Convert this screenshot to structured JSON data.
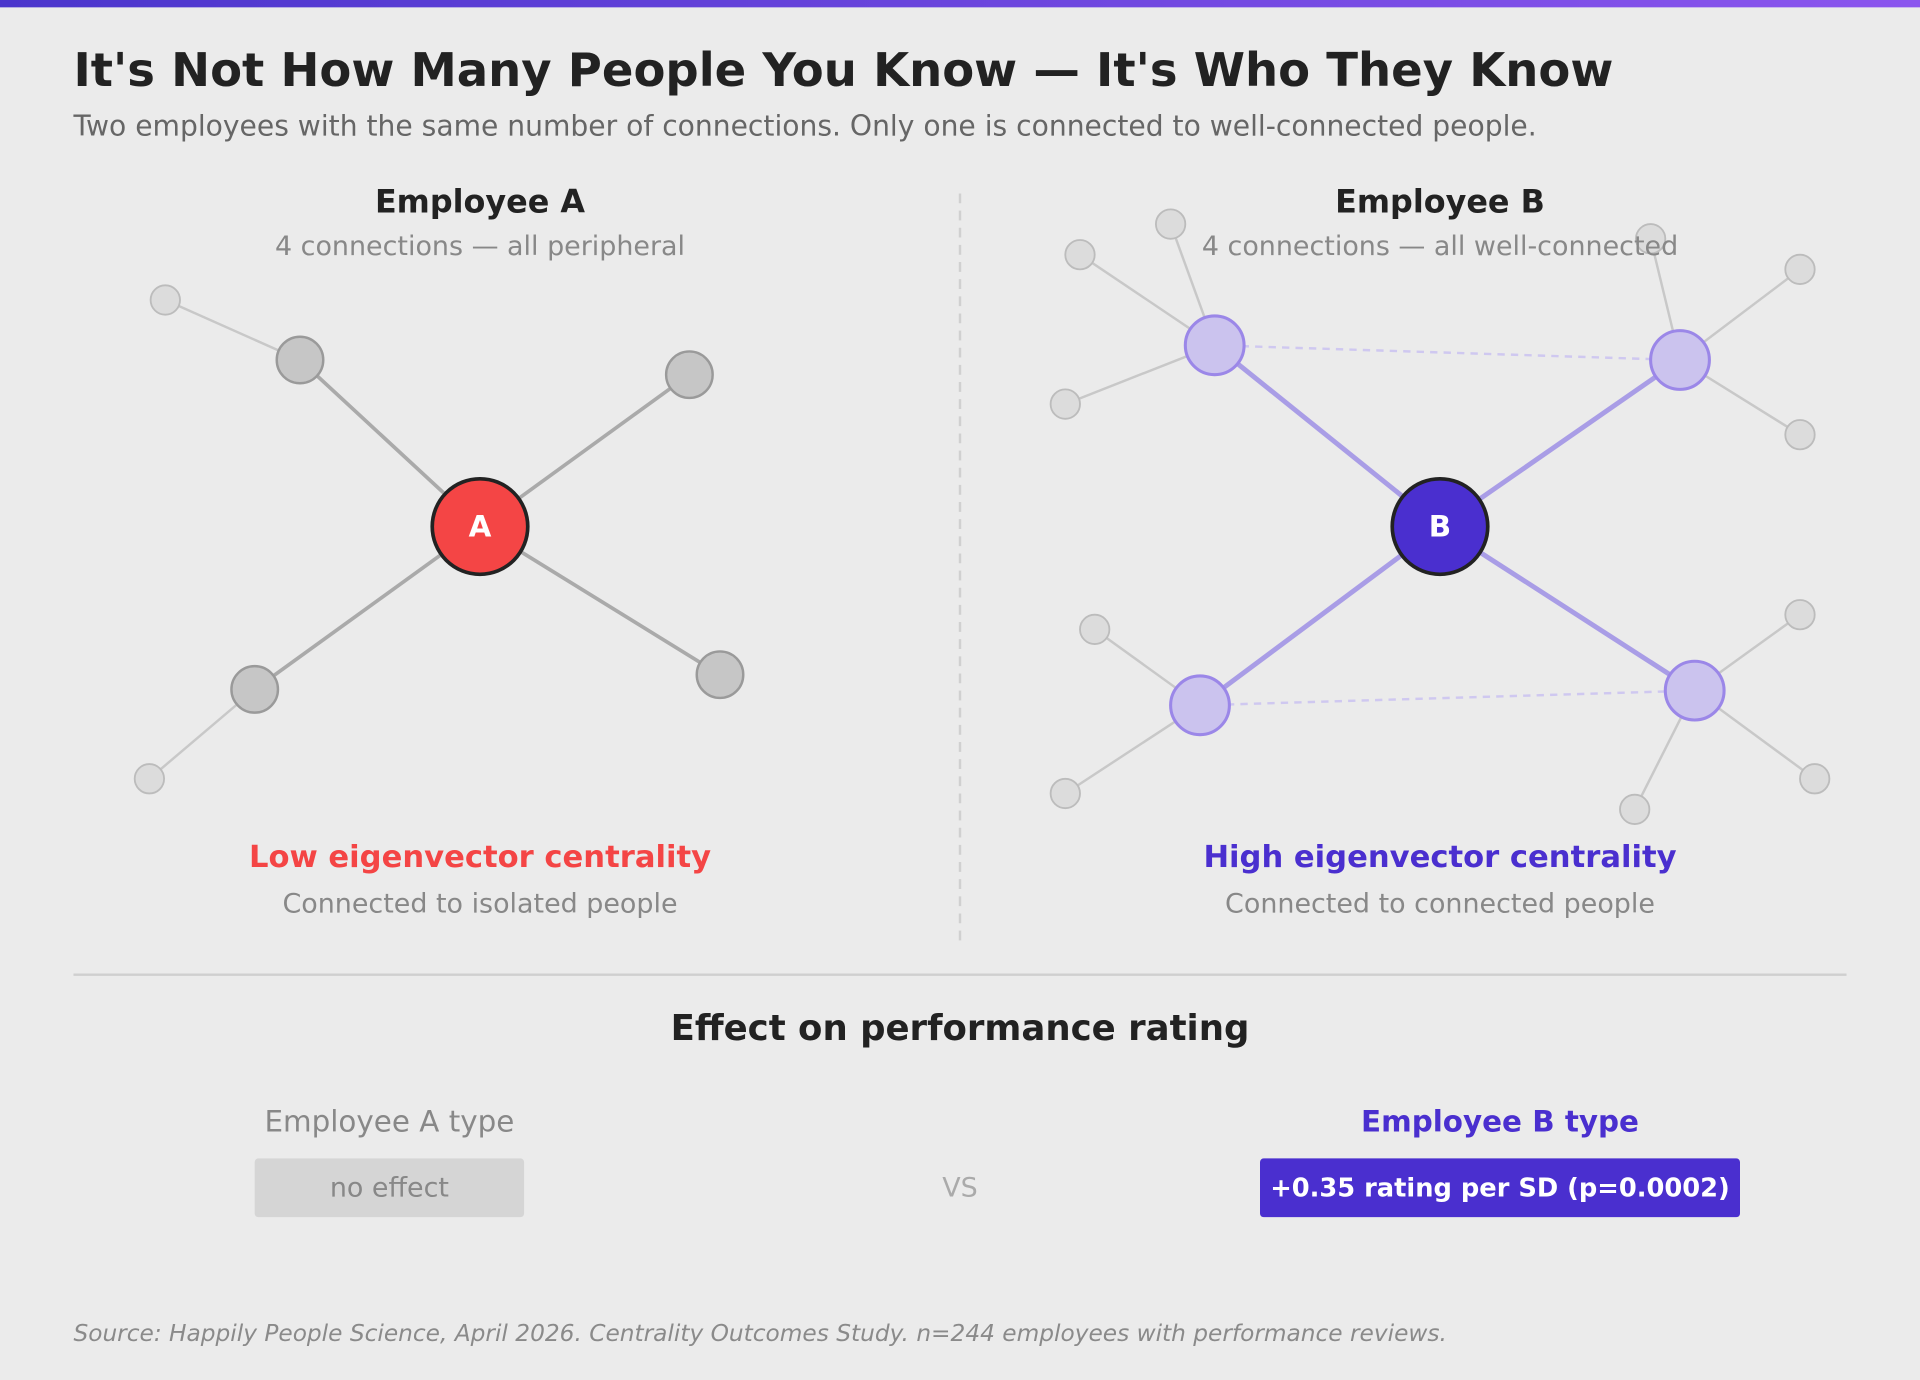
{
  "header": {
    "title": "It's Not How Many People You Know — It's Who They Know",
    "subtitle": "Two employees with the same number of connections. Only one is connected to well-connected people."
  },
  "panels": [
    {
      "title": "Employee A",
      "subtitle": "4 connections — all peripheral",
      "node_label": "A",
      "verdict": "Low eigenvector centrality",
      "verdict_note": "Connected to isolated people"
    },
    {
      "title": "Employee B",
      "subtitle": "4 connections — all well-connected",
      "node_label": "B",
      "verdict": "High eigenvector centrality",
      "verdict_note": "Connected to connected people"
    }
  ],
  "effect": {
    "title": "Effect on performance rating",
    "left": {
      "label": "Employee A type",
      "value": "no effect"
    },
    "separator": "VS",
    "right": {
      "label": "Employee B type",
      "value": "+0.35 rating per SD (p=0.0002)"
    }
  },
  "footer": {
    "source": "Source: Happily People Science, April 2026. Centrality Outcomes Study. n=244 employees with performance reviews."
  }
}
